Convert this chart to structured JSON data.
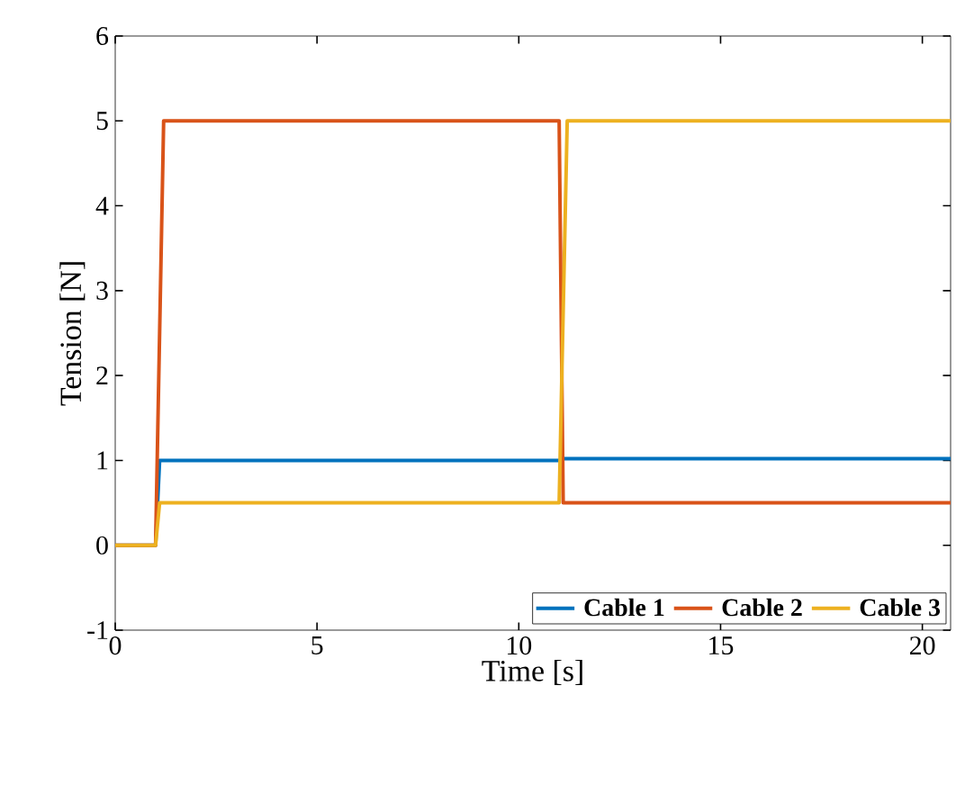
{
  "chart_data": {
    "type": "line",
    "xlabel": "Time [s]",
    "ylabel": "Tension [N]",
    "xlim": [
      0,
      20.7
    ],
    "ylim": [
      -1,
      6
    ],
    "xticks": [
      0,
      5,
      10,
      15,
      20
    ],
    "yticks": [
      -1,
      0,
      1,
      2,
      3,
      4,
      5,
      6
    ],
    "grid": false,
    "legend": "bottom right",
    "marker": "none",
    "line_style": "solid",
    "series": [
      {
        "name": "Cable 1",
        "color": "#0072bd",
        "x": [
          0,
          1.0,
          1.1,
          11.0,
          11.1,
          20.7
        ],
        "values": [
          0,
          0,
          1,
          1,
          1.02,
          1.02
        ]
      },
      {
        "name": "Cable 2",
        "color": "#d95319",
        "x": [
          0,
          1.0,
          1.2,
          11.0,
          11.1,
          20.7
        ],
        "values": [
          0,
          0,
          5,
          5,
          0.5,
          0.5
        ]
      },
      {
        "name": "Cable 3",
        "color": "#edb120",
        "x": [
          0,
          1.0,
          1.1,
          11.0,
          11.2,
          20.7
        ],
        "values": [
          0,
          0,
          0.5,
          0.5,
          5,
          5
        ]
      }
    ]
  }
}
